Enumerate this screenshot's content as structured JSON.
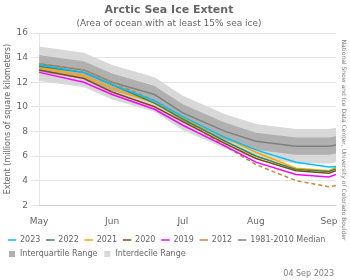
{
  "chart_data": {
    "type": "line",
    "title": "Arctic Sea Ice Extent",
    "subtitle": "(Area of ocean with at least 15% sea ice)",
    "ylabel": "Extent (millions of square kilometers)",
    "annotations": [
      "National Snow and Ice Data Center, University of Colorado Boulder",
      "04 Sep 2023"
    ],
    "x": [
      121,
      140,
      152,
      170,
      182,
      200,
      213,
      230,
      244,
      247
    ],
    "xlim": [
      121,
      247
    ],
    "xticks": [
      {
        "value": 121,
        "label": "May"
      },
      {
        "value": 152,
        "label": "Jun"
      },
      {
        "value": 182,
        "label": "Jul"
      },
      {
        "value": 213,
        "label": "Aug"
      },
      {
        "value": 244,
        "label": "Sep"
      }
    ],
    "ylim": [
      2,
      16
    ],
    "yticks": [
      2,
      4,
      6,
      8,
      10,
      12,
      14,
      16
    ],
    "grid": "y",
    "legend": "lower left",
    "series": [
      {
        "name": "2023",
        "type": "line",
        "color": "#00bfff",
        "line_style": "solid",
        "values": [
          13.4,
          12.8,
          11.8,
          10.5,
          9.2,
          7.5,
          6.5,
          5.5,
          5.1,
          5.15
        ]
      },
      {
        "name": "2022",
        "type": "line",
        "color": "#2e8b57",
        "line_style": "solid",
        "values": [
          13.3,
          12.8,
          11.8,
          10.3,
          9.0,
          7.2,
          6.0,
          4.9,
          4.75,
          4.95
        ]
      },
      {
        "name": "2021",
        "type": "line",
        "color": "#ffa500",
        "line_style": "solid",
        "values": [
          13.2,
          12.5,
          11.5,
          10.3,
          9.1,
          7.5,
          6.3,
          5.0,
          4.8,
          5.1
        ]
      },
      {
        "name": "2020",
        "type": "line",
        "color": "#8b4513",
        "line_style": "solid",
        "values": [
          13.0,
          12.3,
          11.2,
          10.0,
          8.8,
          7.0,
          5.8,
          4.8,
          4.6,
          4.8
        ]
      },
      {
        "name": "2019",
        "type": "line",
        "color": "#ff00ff",
        "line_style": "solid",
        "values": [
          12.8,
          12.0,
          11.0,
          9.8,
          8.5,
          6.8,
          5.5,
          4.5,
          4.3,
          4.5
        ]
      },
      {
        "name": "2012",
        "type": "line",
        "color": "#cd853f",
        "line_style": "dashed",
        "values": [
          13.5,
          13.0,
          12.0,
          10.5,
          9.0,
          6.8,
          5.3,
          4.0,
          3.5,
          3.6
        ]
      },
      {
        "name": "1981-2010 Median",
        "type": "line",
        "color": "#808080",
        "line_style": "solid",
        "values": [
          13.5,
          13.0,
          12.0,
          11.0,
          9.5,
          8.0,
          7.2,
          6.8,
          6.8,
          6.9
        ]
      },
      {
        "name": "Interquartile Range",
        "type": "area",
        "color": "#b0b0b0",
        "lower": [
          12.8,
          12.3,
          11.3,
          10.3,
          8.8,
          7.3,
          6.5,
          6.1,
          6.1,
          6.2
        ],
        "upper": [
          14.2,
          13.7,
          12.7,
          11.7,
          10.2,
          8.7,
          7.9,
          7.5,
          7.5,
          7.6
        ]
      },
      {
        "name": "Interdecile Range",
        "type": "area",
        "color": "#d8d8d8",
        "lower": [
          12.1,
          11.6,
          10.6,
          9.6,
          8.1,
          6.6,
          5.8,
          5.4,
          5.4,
          5.5
        ],
        "upper": [
          14.9,
          14.4,
          13.4,
          12.4,
          10.9,
          9.4,
          8.6,
          8.2,
          8.2,
          8.3
        ]
      }
    ]
  }
}
